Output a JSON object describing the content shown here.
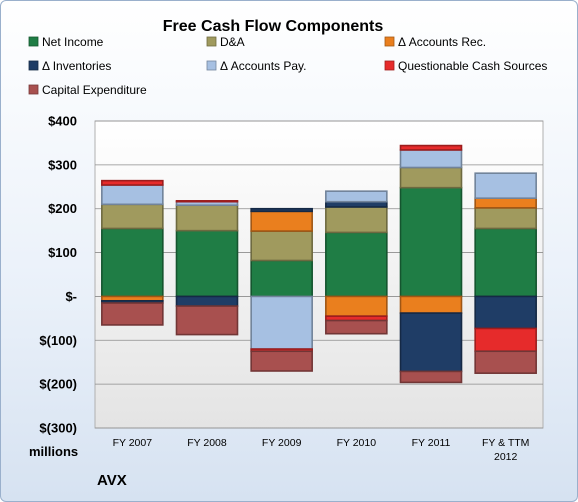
{
  "chart_data": {
    "type": "bar",
    "stacked": true,
    "title": "Free Cash Flow Components",
    "ylabel": "",
    "xlabel": "",
    "unit_label": "millions",
    "brand": "AVX",
    "ylim": [
      -300,
      400
    ],
    "yticks": [
      400,
      300,
      200,
      100,
      0,
      -100,
      -200,
      -300
    ],
    "ytick_labels": [
      "$400",
      "$300",
      "$200",
      "$100",
      "$-",
      "$(100)",
      "$(200)",
      "$(300)"
    ],
    "grid": true,
    "legend_position": "top",
    "categories": [
      "FY 2007",
      "FY 2008",
      "FY 2009",
      "FY 2010",
      "FY 2011",
      "FY & TTM 2012"
    ],
    "series": [
      {
        "name": "Net Income",
        "color": "#1f7d45",
        "values": [
          155,
          150,
          82,
          146,
          248,
          155
        ]
      },
      {
        "name": "D&A",
        "color": "#a09a5e",
        "values": [
          55,
          58,
          67,
          58,
          46,
          47
        ]
      },
      {
        "name": "Δ Accounts Rec.",
        "color": "#ea7f1e",
        "values": [
          -10,
          0,
          45,
          -45,
          -38,
          22
        ]
      },
      {
        "name": "Δ Inventories",
        "color": "#1f3d66",
        "values": [
          -5,
          -22,
          6,
          12,
          -133,
          -73
        ]
      },
      {
        "name": "Δ Accounts Pay.",
        "color": "#a6c0e2",
        "values": [
          44,
          8,
          -120,
          24,
          40,
          57
        ]
      },
      {
        "name": "Questionable Cash Sources",
        "color": "#e62b2b",
        "values": [
          10,
          2,
          -5,
          -10,
          10,
          -52
        ]
      },
      {
        "name": "Capital Expenditure",
        "color": "#a8504f",
        "values": [
          -50,
          -65,
          -45,
          -30,
          -25,
          -50
        ]
      }
    ]
  }
}
